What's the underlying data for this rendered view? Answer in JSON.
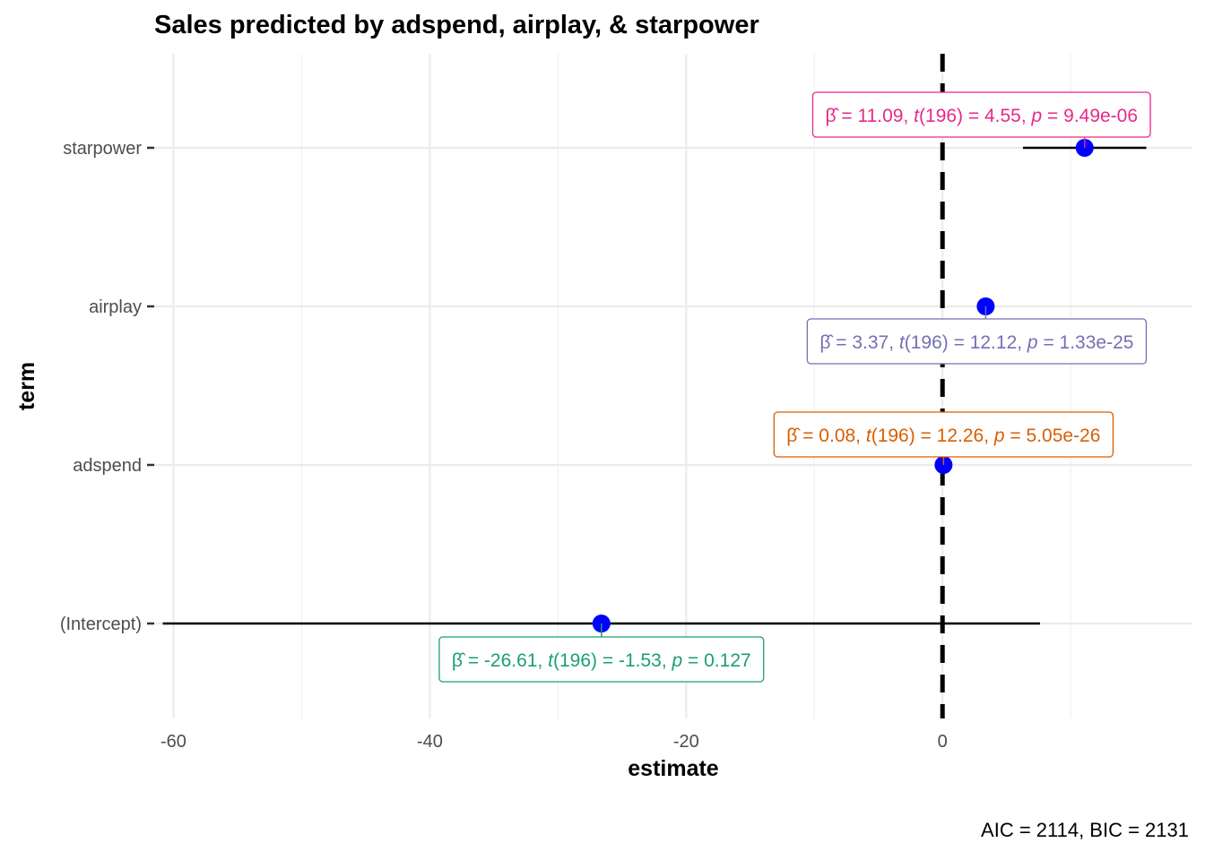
{
  "chart_data": {
    "type": "scatter",
    "title": "Sales predicted by adspend, airplay, & starpower",
    "xlabel": "estimate",
    "ylabel": "term",
    "caption": "AIC = 2114, BIC = 2131",
    "xlim": [
      -61.5,
      19.5
    ],
    "x_ticks": [
      -60,
      -40,
      -20,
      0
    ],
    "x_tick_labels": [
      "-60",
      "-40",
      "-20",
      "0"
    ],
    "grid": true,
    "reference_line": 0,
    "point_color": "#0000ff",
    "terms": [
      {
        "term": "starpower",
        "estimate": 11.09,
        "ci": [
          6.28,
          15.9
        ],
        "label_color": "#e7298a",
        "label": {
          "beta": "11.09",
          "t_df": "196",
          "t": "4.55",
          "p": "9.49e-06"
        }
      },
      {
        "term": "airplay",
        "estimate": 3.37,
        "ci": [
          2.82,
          3.92
        ],
        "label_color": "#7570b3",
        "label": {
          "beta": "3.37",
          "t_df": "196",
          "t": "12.12",
          "p": "1.33e-25"
        }
      },
      {
        "term": "adspend",
        "estimate": 0.08,
        "ci": [
          0.07,
          0.1
        ],
        "label_color": "#d95f02",
        "label": {
          "beta": "0.08",
          "t_df": "196",
          "t": "12.26",
          "p": "5.05e-26"
        }
      },
      {
        "term": "(Intercept)",
        "estimate": -26.61,
        "ci": [
          -60.83,
          7.61
        ],
        "label_color": "#1b9e77",
        "label": {
          "beta": "-26.61",
          "t_df": "196",
          "t": "-1.53",
          "p": "0.127"
        }
      }
    ]
  }
}
